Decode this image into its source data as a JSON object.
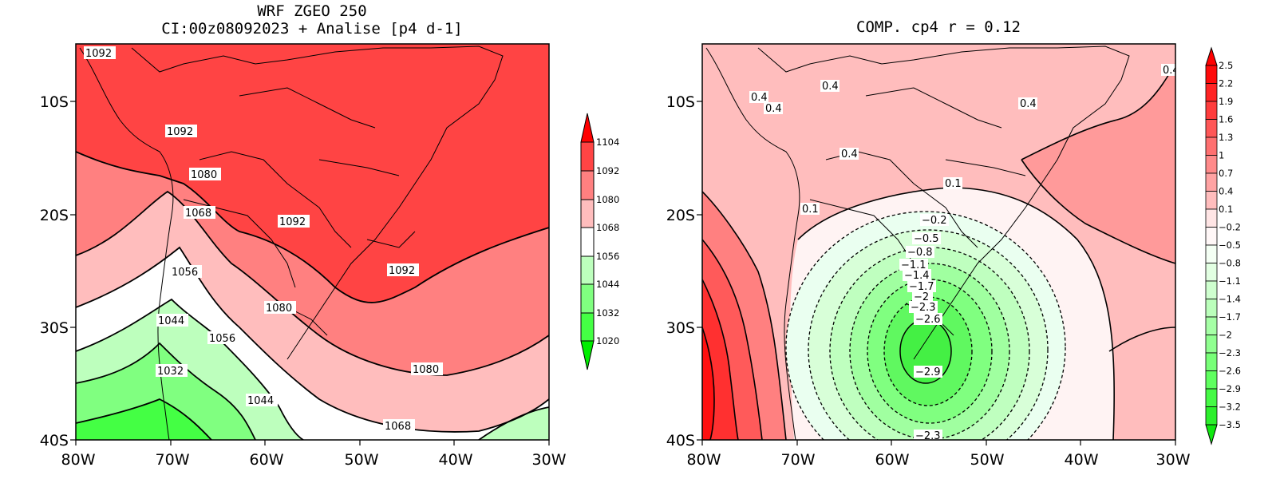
{
  "left_panel": {
    "title_line1": "WRF ZGEO 250",
    "title_line2": "CI:00z08092023 + Analise  [p4 d-1]",
    "y_ticks": [
      "10S",
      "20S",
      "30S",
      "40S"
    ],
    "x_ticks": [
      "80W",
      "70W",
      "60W",
      "50W",
      "40W",
      "30W"
    ],
    "colorbar_labels": [
      "1104",
      "1092",
      "1080",
      "1068",
      "1056",
      "1044",
      "1032",
      "1020"
    ],
    "colorbar_colors": [
      "#ff0000",
      "#ff4444",
      "#ff8080",
      "#ffbdbd",
      "#ffffff",
      "#bdffbd",
      "#80ff80",
      "#44ff44",
      "#00ee00"
    ],
    "contour_labels": [
      "1092",
      "1092",
      "1080",
      "1068",
      "1092",
      "1056",
      "1080",
      "1092",
      "1044",
      "1056",
      "1032",
      "1080",
      "1044",
      "1068"
    ]
  },
  "right_panel": {
    "title": "COMP. cp4   r =   0.12",
    "y_ticks": [
      "10S",
      "20S",
      "30S",
      "40S"
    ],
    "x_ticks": [
      "80W",
      "70W",
      "60W",
      "50W",
      "40W",
      "30W"
    ],
    "colorbar_labels": [
      "2.5",
      "2.2",
      "1.9",
      "1.6",
      "1.3",
      "1",
      "0.7",
      "0.4",
      "0.1",
      "−0.2",
      "−0.5",
      "−0.8",
      "−1.1",
      "−1.4",
      "−1.7",
      "−2",
      "−2.3",
      "−2.6",
      "−2.9",
      "−3.2",
      "−3.5"
    ],
    "contour_labels": [
      "0.4",
      "0.4",
      "0.4",
      "0.4",
      "0.4",
      "0.4",
      "0.1",
      "0.1",
      "−0.2",
      "−0.5",
      "−0.8",
      "−1.1",
      "−1.4",
      "−1.7",
      "−2",
      "−2.3",
      "−2.6",
      "−2.9",
      "−2.3"
    ],
    "edge_label": "0.4"
  }
}
